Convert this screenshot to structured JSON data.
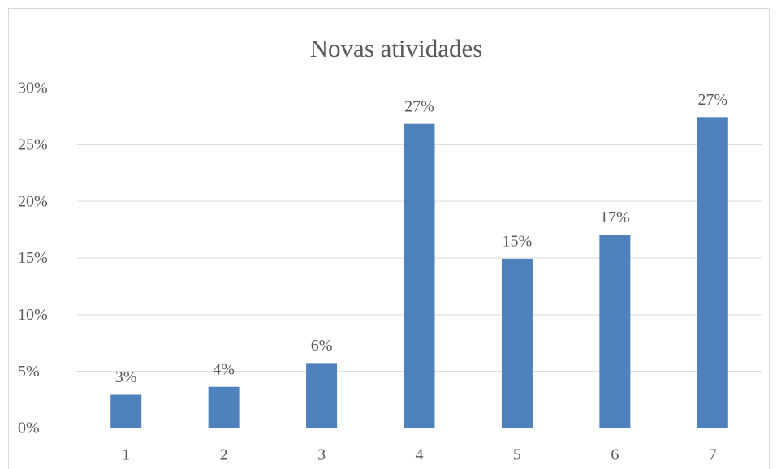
{
  "chart_data": {
    "type": "bar",
    "title": "Novas atividades",
    "categories": [
      "1",
      "2",
      "3",
      "4",
      "5",
      "6",
      "7"
    ],
    "values": [
      2.9,
      3.6,
      5.7,
      26.8,
      14.9,
      17.0,
      27.4
    ],
    "value_labels": [
      "3%",
      "4%",
      "6%",
      "27%",
      "15%",
      "17%",
      "27%"
    ],
    "color": "#4f81bd",
    "ylim": [
      0,
      30
    ],
    "yticks": [
      {
        "value": 0,
        "label": "0%"
      },
      {
        "value": 5,
        "label": "5%"
      },
      {
        "value": 10,
        "label": "10%"
      },
      {
        "value": 15,
        "label": "15%"
      },
      {
        "value": 20,
        "label": "20%"
      },
      {
        "value": 25,
        "label": "25%"
      },
      {
        "value": 30,
        "label": "30%"
      }
    ],
    "grid": true
  }
}
